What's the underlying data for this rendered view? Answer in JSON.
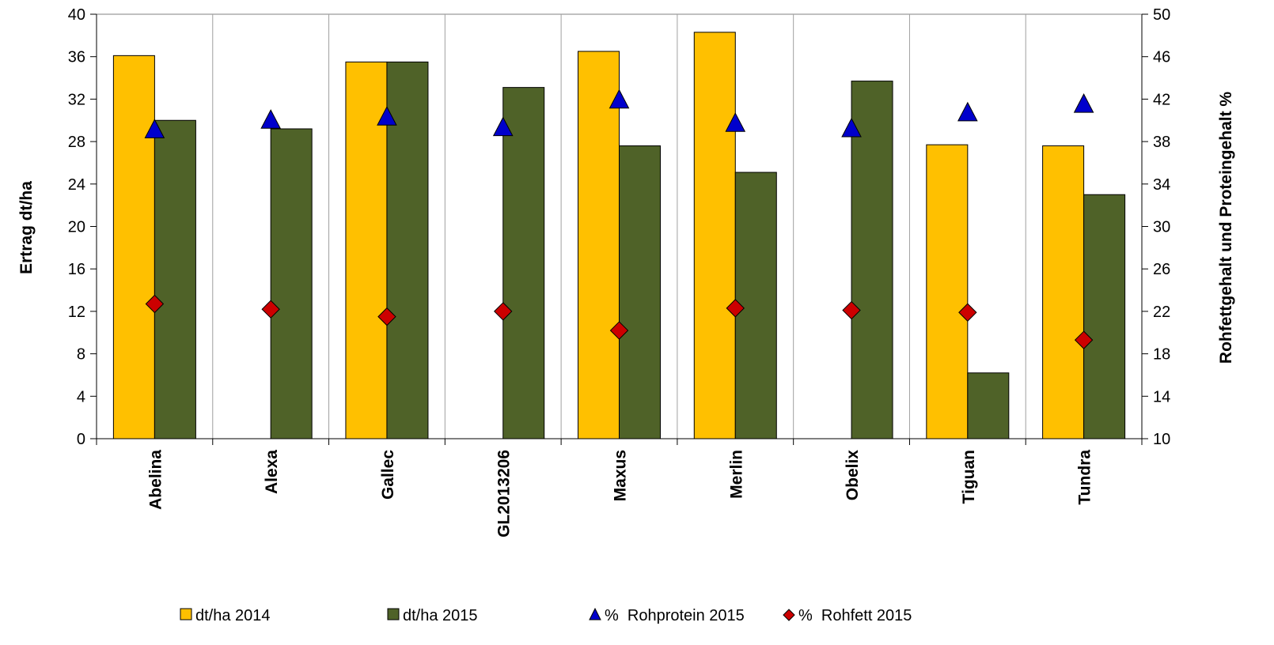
{
  "chart_data": {
    "type": "bar",
    "categories": [
      "Abelina",
      "Alexa",
      "Gallec",
      "GL2013206",
      "Maxus",
      "Merlin",
      "Obelix",
      "Tiguan",
      "Tundra"
    ],
    "series": [
      {
        "name": "dt/ha 2014",
        "kind": "bar",
        "axis": "left",
        "color": "#FFC000",
        "values": [
          36.1,
          null,
          35.5,
          null,
          36.5,
          38.3,
          null,
          27.7,
          27.6
        ]
      },
      {
        "name": "dt/ha 2015",
        "kind": "bar",
        "axis": "left",
        "color": "#4F6228",
        "values": [
          30.0,
          29.2,
          35.5,
          33.1,
          27.6,
          25.1,
          33.7,
          6.2,
          23.0
        ]
      },
      {
        "name": "%  Rohprotein 2015",
        "kind": "marker",
        "marker": "triangle",
        "axis": "right",
        "color": "#0000CC",
        "values": [
          39.1,
          40.0,
          40.3,
          39.3,
          41.9,
          39.7,
          39.2,
          40.7,
          41.5
        ]
      },
      {
        "name": "%  Rohfett 2015",
        "kind": "marker",
        "marker": "diamond",
        "axis": "right",
        "color": "#CC0000",
        "values": [
          22.7,
          22.2,
          21.5,
          22.0,
          20.2,
          22.3,
          22.1,
          21.9,
          19.3
        ]
      }
    ],
    "ylabel": "Ertrag dt/ha",
    "ylabel_right": "Rohfettgehalt und Proteingehalt %",
    "ylim": [
      0,
      40
    ],
    "yticks": [
      "0",
      "4",
      "8",
      "12",
      "16",
      "20",
      "24",
      "28",
      "32",
      "36",
      "40"
    ],
    "ylim_right": [
      10,
      50
    ],
    "yticks_right": [
      "10",
      "14",
      "18",
      "22",
      "26",
      "30",
      "34",
      "38",
      "42",
      "46",
      "50"
    ],
    "grid": "vertical",
    "legend_position": "bottom"
  }
}
